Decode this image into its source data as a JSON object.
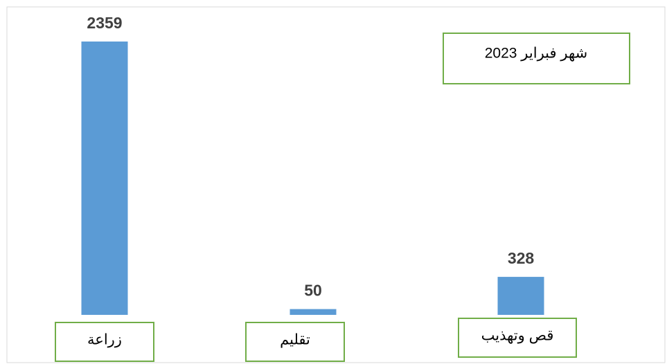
{
  "chart_data": {
    "type": "bar",
    "title": "شهر فبراير 2023",
    "categories": [
      "زراعة",
      "تقليم",
      "قص وتهذيب"
    ],
    "values": [
      2359,
      50,
      328
    ],
    "color": "#5b9bd5"
  }
}
